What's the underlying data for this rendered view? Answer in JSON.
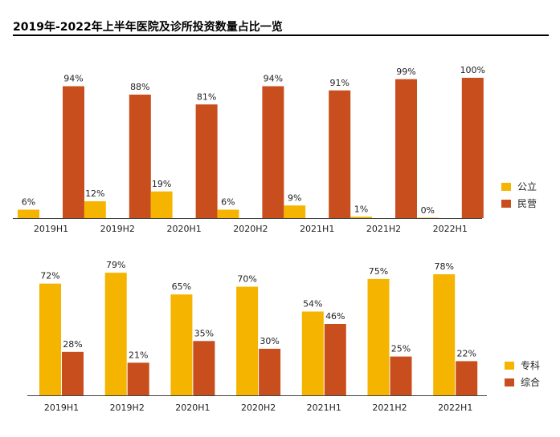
{
  "title": "2019年-2022年上半年医院及诊所投资数量占比一览",
  "chart_data": [
    {
      "type": "bar",
      "title": "",
      "categories": [
        "2019H1",
        "2019H2",
        "2020H1",
        "2020H2",
        "2021H1",
        "2021H2",
        "2022H1"
      ],
      "series": [
        {
          "name": "公立",
          "values": [
            6,
            12,
            19,
            6,
            9,
            1,
            0
          ],
          "labels": [
            "6%",
            "12%",
            "19%",
            "6%",
            "9%",
            "1%",
            "0%"
          ],
          "color": "#F5B400"
        },
        {
          "name": "民营",
          "values": [
            94,
            88,
            81,
            94,
            91,
            99,
            100
          ],
          "labels": [
            "94%",
            "88%",
            "81%",
            "94%",
            "91%",
            "99%",
            "100%"
          ],
          "color": "#C94E1E"
        }
      ],
      "ylim": [
        0,
        100
      ],
      "grid": false,
      "legend": "right"
    },
    {
      "type": "bar",
      "title": "",
      "categories": [
        "2019H1",
        "2019H2",
        "2020H1",
        "2020H2",
        "2021H1",
        "2021H2",
        "2022H1"
      ],
      "series": [
        {
          "name": "专科",
          "values": [
            72,
            79,
            65,
            70,
            54,
            75,
            78
          ],
          "labels": [
            "72%",
            "79%",
            "65%",
            "70%",
            "54%",
            "75%",
            "78%"
          ],
          "color": "#F5B400"
        },
        {
          "name": "综合",
          "values": [
            28,
            21,
            35,
            30,
            46,
            25,
            22
          ],
          "labels": [
            "28%",
            "21%",
            "35%",
            "30%",
            "46%",
            "25%",
            "22%"
          ],
          "color": "#C94E1E"
        }
      ],
      "ylim": [
        0,
        100
      ],
      "grid": false,
      "legend": "right"
    }
  ]
}
